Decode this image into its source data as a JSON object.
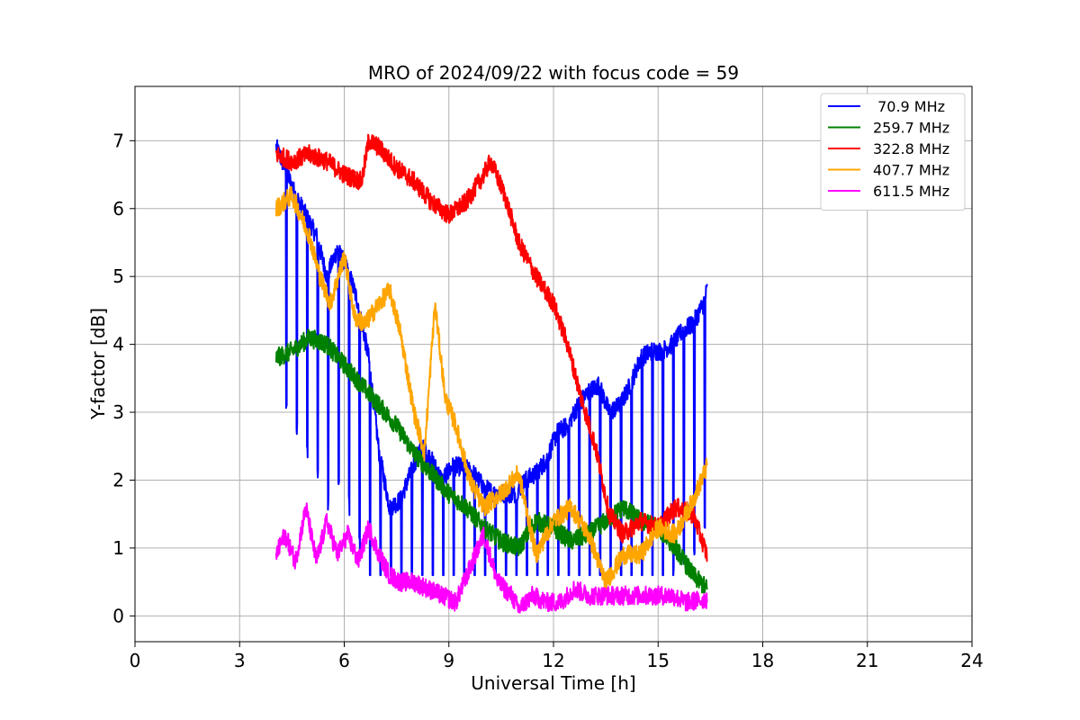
{
  "chart_data": {
    "type": "line",
    "title": "MRO of 2024/09/22 with focus code = 59",
    "xlabel": "Universal Time [h]",
    "ylabel": "Y-factor [dB]",
    "xlim": [
      0,
      24
    ],
    "ylim": [
      -0.38,
      7.8
    ],
    "xticks": [
      0,
      3,
      6,
      9,
      12,
      15,
      18,
      21,
      24
    ],
    "yticks": [
      0,
      1,
      2,
      3,
      4,
      5,
      6,
      7
    ],
    "grid": true,
    "legend_position": "top-right",
    "series": [
      {
        "name": " 70.9 MHz",
        "color": "#0000ff",
        "dips": true,
        "x": [
          4.05,
          4.3,
          4.6,
          4.9,
          5.2,
          5.5,
          5.8,
          6.1,
          6.4,
          6.7,
          7.0,
          7.3,
          7.6,
          7.9,
          8.2,
          8.5,
          8.8,
          9.1,
          9.4,
          9.7,
          10.0,
          10.3,
          10.6,
          10.9,
          11.2,
          11.5,
          11.8,
          12.1,
          12.4,
          12.7,
          13.0,
          13.3,
          13.6,
          13.9,
          14.2,
          14.5,
          14.8,
          15.1,
          15.4,
          15.7,
          16.0,
          16.3,
          16.4
        ],
        "y": [
          6.9,
          6.6,
          6.2,
          5.9,
          5.6,
          5.0,
          5.4,
          5.1,
          4.6,
          3.8,
          2.4,
          1.6,
          1.7,
          2.1,
          2.5,
          2.3,
          2.0,
          2.2,
          2.2,
          2.1,
          1.9,
          1.8,
          1.8,
          1.8,
          2.0,
          2.1,
          2.3,
          2.7,
          2.8,
          3.1,
          3.3,
          3.4,
          3.0,
          3.1,
          3.4,
          3.8,
          3.9,
          3.9,
          4.0,
          4.2,
          4.3,
          4.6,
          4.8
        ]
      },
      {
        "name": "259.7 MHz",
        "color": "#008000",
        "dips": false,
        "x": [
          4.05,
          4.5,
          5.0,
          5.5,
          6.0,
          6.5,
          7.0,
          7.5,
          8.0,
          8.5,
          9.0,
          9.5,
          10.0,
          10.5,
          11.0,
          11.5,
          12.0,
          12.5,
          13.0,
          13.5,
          14.0,
          14.5,
          15.0,
          15.5,
          16.0,
          16.4
        ],
        "y": [
          3.8,
          3.9,
          4.1,
          4.0,
          3.7,
          3.4,
          3.1,
          2.8,
          2.4,
          2.1,
          1.8,
          1.6,
          1.3,
          1.1,
          1.0,
          1.4,
          1.3,
          1.1,
          1.2,
          1.4,
          1.6,
          1.4,
          1.3,
          1.0,
          0.6,
          0.4
        ]
      },
      {
        "name": "322.8 MHz",
        "color": "#ff0000",
        "dips": false,
        "x": [
          4.05,
          4.5,
          5.0,
          5.5,
          6.0,
          6.5,
          6.7,
          7.0,
          7.5,
          8.0,
          8.5,
          9.0,
          9.5,
          10.0,
          10.2,
          10.6,
          11.0,
          11.5,
          12.0,
          12.4,
          12.8,
          13.2,
          13.6,
          14.0,
          14.5,
          15.0,
          15.5,
          16.0,
          16.4
        ],
        "y": [
          6.8,
          6.7,
          6.8,
          6.7,
          6.5,
          6.4,
          7.0,
          6.9,
          6.6,
          6.4,
          6.1,
          5.9,
          6.1,
          6.5,
          6.7,
          6.2,
          5.5,
          5.0,
          4.6,
          4.0,
          3.2,
          2.5,
          1.5,
          1.2,
          1.4,
          1.3,
          1.6,
          1.5,
          0.9
        ]
      },
      {
        "name": "407.7 MHz",
        "color": "#ffa500",
        "dips": false,
        "x": [
          4.05,
          4.5,
          5.0,
          5.3,
          5.6,
          6.0,
          6.3,
          6.6,
          7.0,
          7.3,
          7.6,
          8.0,
          8.3,
          8.6,
          8.9,
          9.2,
          9.6,
          10.0,
          10.5,
          11.0,
          11.5,
          12.0,
          12.5,
          13.0,
          13.5,
          14.0,
          14.5,
          15.0,
          15.5,
          16.0,
          16.4
        ],
        "y": [
          6.0,
          6.2,
          5.6,
          5.0,
          4.6,
          5.3,
          4.4,
          4.3,
          4.6,
          4.8,
          4.2,
          3.0,
          2.4,
          4.6,
          3.2,
          2.8,
          2.0,
          1.6,
          1.8,
          2.1,
          0.9,
          1.4,
          1.6,
          1.2,
          0.5,
          0.9,
          0.9,
          1.3,
          1.2,
          1.7,
          2.2
        ]
      },
      {
        "name": "611.5 MHz",
        "color": "#ff00ff",
        "dips": false,
        "x": [
          4.05,
          4.3,
          4.6,
          4.9,
          5.2,
          5.5,
          5.8,
          6.1,
          6.4,
          6.7,
          7.0,
          7.3,
          7.6,
          8.0,
          8.4,
          8.8,
          9.2,
          9.6,
          10.0,
          10.4,
          10.8,
          11.0,
          11.4,
          11.8,
          12.2,
          12.6,
          13.0,
          13.4,
          13.8,
          14.2,
          14.6,
          15.0,
          15.4,
          15.8,
          16.4
        ],
        "y": [
          0.9,
          1.2,
          0.8,
          1.6,
          0.8,
          1.4,
          0.9,
          1.2,
          0.8,
          1.3,
          0.9,
          0.6,
          0.5,
          0.5,
          0.4,
          0.3,
          0.2,
          0.7,
          1.2,
          0.5,
          0.3,
          0.1,
          0.3,
          0.2,
          0.2,
          0.4,
          0.3,
          0.3,
          0.3,
          0.3,
          0.3,
          0.3,
          0.3,
          0.2,
          0.25
        ]
      }
    ]
  }
}
